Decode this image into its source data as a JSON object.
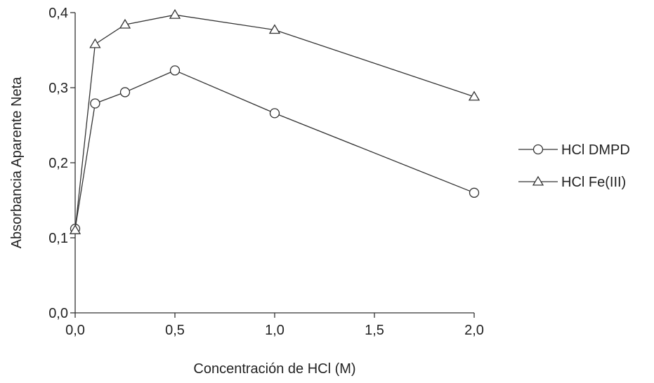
{
  "chart_data": {
    "type": "line",
    "xlabel": "Concentración de HCl (M)",
    "ylabel": "Absorbancia Aparente Neta",
    "xlim": [
      0,
      2
    ],
    "ylim": [
      0,
      0.4
    ],
    "x_ticks": [
      0,
      0.5,
      1.0,
      1.5,
      2.0
    ],
    "x_tick_labels": [
      "0,0",
      "0,5",
      "1,0",
      "1,5",
      "2,0"
    ],
    "y_ticks": [
      0,
      0.1,
      0.2,
      0.3,
      0.4
    ],
    "y_tick_labels": [
      "0,0",
      "0,1",
      "0,2",
      "0,3",
      "0,4"
    ],
    "grid": false,
    "legend_position": "right",
    "series": [
      {
        "name": "HCl DMPD",
        "marker": "circle",
        "x": [
          0.0,
          0.1,
          0.25,
          0.5,
          1.0,
          2.0
        ],
        "y": [
          0.112,
          0.279,
          0.294,
          0.323,
          0.266,
          0.16
        ]
      },
      {
        "name": "HCl Fe(III)",
        "marker": "triangle",
        "x": [
          0.0,
          0.1,
          0.25,
          0.5,
          1.0,
          2.0
        ],
        "y": [
          0.11,
          0.358,
          0.384,
          0.397,
          0.377,
          0.288
        ]
      }
    ],
    "line_color": "#333333",
    "background": "#ffffff"
  }
}
